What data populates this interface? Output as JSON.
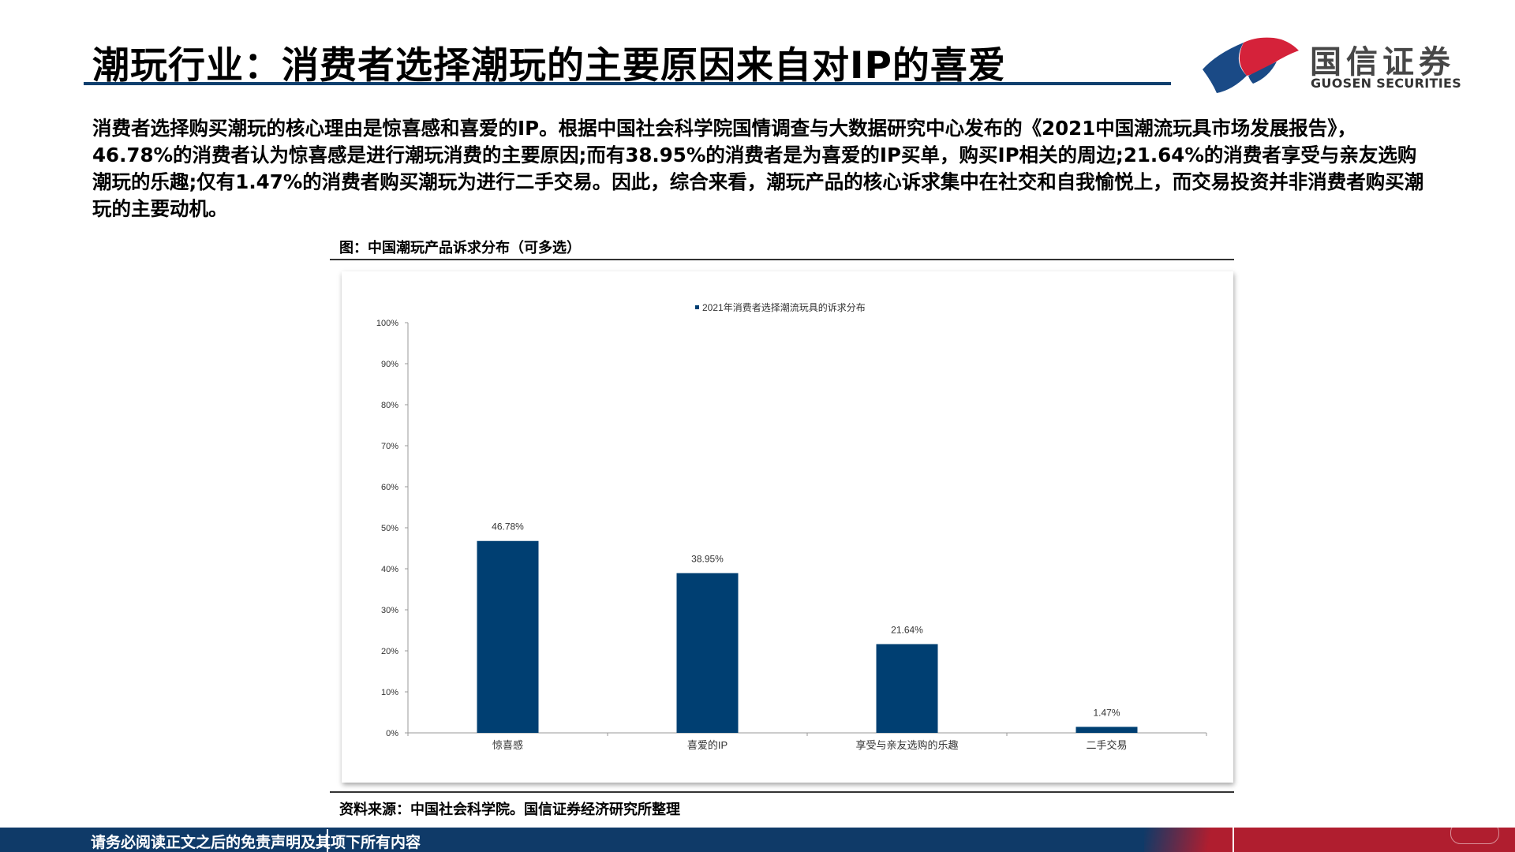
{
  "header": {
    "title": "潮玩行业：消费者选择潮玩的主要原因来自对IP的喜爱",
    "logo_name": "国信证券",
    "logo_en": "GUOSEN SECURITIES"
  },
  "summary": "消费者选择购买潮玩的核心理由是惊喜感和喜爱的IP。根据中国社会科学院国情调查与大数据研究中心发布的《2021中国潮流玩具市场发展报告》，46.78%的消费者认为惊喜感是进行潮玩消费的主要原因;而有38.95%的消费者是为喜爱的IP买单，购买IP相关的周边;21.64%的消费者享受与亲友选购潮玩的乐趣;仅有1.47%的消费者购买潮玩为进行二手交易。因此，综合来看，潮玩产品的核心诉求集中在社交和自我愉悦上，而交易投资并非消费者购买潮玩的主要动机。",
  "figure_caption": "图：中国潮玩产品诉求分布（可多选）",
  "source": "资料来源：中国社会科学院。国信证券经济研究所整理",
  "footer": "请务必阅读正文之后的免责声明及其项下所有内容",
  "colors": {
    "bar": "#003f72",
    "title_rule": "#0f3f6e",
    "footer_blue": "#0f3a68",
    "footer_red": "#b01e2f",
    "logo_blue": "#1a4a86",
    "logo_red": "#d5223a"
  },
  "chart_data": {
    "type": "bar",
    "categories": [
      "惊喜感",
      "喜爱的IP",
      "享受与亲友选购的乐趣",
      "二手交易"
    ],
    "series": [
      {
        "name": "2021年消费者选择潮流玩具的诉求分布",
        "values": [
          46.78,
          38.95,
          21.64,
          1.47
        ],
        "labels": [
          "46.78%",
          "38.95%",
          "21.64%",
          "1.47%"
        ]
      }
    ],
    "ylim": [
      0,
      100
    ],
    "yticks": [
      "0%",
      "10%",
      "20%",
      "30%",
      "40%",
      "50%",
      "60%",
      "70%",
      "80%",
      "90%",
      "100%"
    ],
    "legend": "top-center",
    "grid": false
  }
}
